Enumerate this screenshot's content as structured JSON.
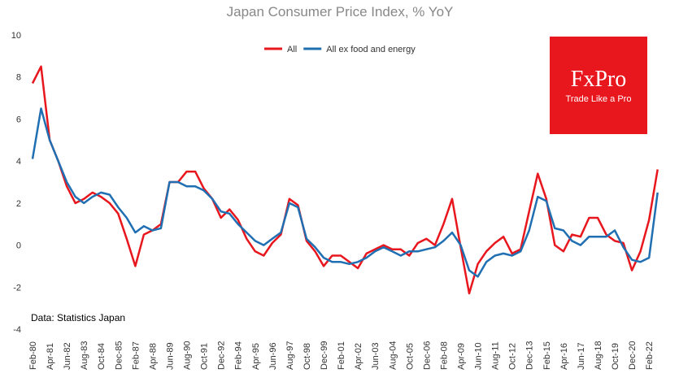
{
  "chart_data": {
    "type": "line",
    "title": "Japan Consumer Price Index, % YoY",
    "source": "Data: Statistics Japan",
    "logo": {
      "brand": "FxPro",
      "tagline": "Trade Like a Pro"
    },
    "categories": [
      "Feb-80",
      null,
      "Apr-81",
      null,
      "Jun-82",
      null,
      "Aug-83",
      null,
      "Oct-84",
      null,
      "Dec-85",
      null,
      "Feb-87",
      null,
      "Apr-88",
      null,
      "Jun-89",
      null,
      "Aug-90",
      null,
      "Oct-91",
      null,
      "Dec-92",
      null,
      "Feb-94",
      null,
      "Apr-95",
      null,
      "Jun-96",
      null,
      "Aug-97",
      null,
      "Oct-98",
      null,
      "Dec-99",
      null,
      "Feb-01",
      null,
      "Apr-02",
      null,
      "Jun-03",
      null,
      "Aug-04",
      null,
      "Oct-05",
      null,
      "Dec-06",
      null,
      "Feb-08",
      null,
      "Apr-09",
      null,
      "Jun-10",
      null,
      "Aug-11",
      null,
      "Oct-12",
      null,
      "Dec-13",
      null,
      "Feb-15",
      null,
      "Apr-16",
      null,
      "Jun-17",
      null,
      "Aug-18",
      null,
      "Oct-19",
      null,
      "Dec-20",
      null,
      "Feb-22",
      null
    ],
    "series": [
      {
        "name": "All",
        "color": "#e8161d",
        "values": [
          7.7,
          8.5,
          5.0,
          4.0,
          2.8,
          2.0,
          2.2,
          2.5,
          2.3,
          2.0,
          1.5,
          0.3,
          -1.0,
          0.5,
          0.7,
          1.0,
          3.0,
          3.0,
          3.5,
          3.5,
          2.7,
          2.2,
          1.3,
          1.7,
          1.2,
          0.3,
          -0.3,
          -0.5,
          0.1,
          0.5,
          2.2,
          1.9,
          0.2,
          -0.3,
          -1.0,
          -0.5,
          -0.5,
          -0.8,
          -1.1,
          -0.4,
          -0.2,
          0.0,
          -0.2,
          -0.2,
          -0.5,
          0.1,
          0.3,
          0.0,
          1.0,
          2.2,
          -0.1,
          -2.3,
          -0.9,
          -0.3,
          0.1,
          0.4,
          -0.4,
          -0.2,
          1.6,
          3.4,
          2.2,
          0.0,
          -0.3,
          0.5,
          0.4,
          1.3,
          1.3,
          0.5,
          0.2,
          0.1,
          -1.2,
          -0.3,
          1.2,
          3.6
        ]
      },
      {
        "name": "All ex food and energy",
        "color": "#1f6fb2",
        "values": [
          4.1,
          6.5,
          5.0,
          4.0,
          3.0,
          2.3,
          2.0,
          2.3,
          2.5,
          2.4,
          1.8,
          1.3,
          0.6,
          0.9,
          0.7,
          0.8,
          3.0,
          3.0,
          2.8,
          2.8,
          2.6,
          2.2,
          1.6,
          1.5,
          1.0,
          0.6,
          0.2,
          0.0,
          0.3,
          0.6,
          2.0,
          1.8,
          0.3,
          -0.1,
          -0.6,
          -0.8,
          -0.8,
          -0.9,
          -0.8,
          -0.6,
          -0.3,
          -0.1,
          -0.3,
          -0.5,
          -0.3,
          -0.3,
          -0.2,
          -0.1,
          0.2,
          0.6,
          0.0,
          -1.2,
          -1.5,
          -0.8,
          -0.5,
          -0.4,
          -0.5,
          -0.3,
          0.7,
          2.3,
          2.1,
          0.8,
          0.7,
          0.2,
          0.0,
          0.4,
          0.4,
          0.4,
          0.7,
          -0.1,
          -0.7,
          -0.8,
          -0.6,
          2.5
        ]
      }
    ],
    "ylim": [
      -4,
      10
    ],
    "yticks": [
      -4,
      -2,
      0,
      2,
      4,
      6,
      8,
      10
    ]
  }
}
